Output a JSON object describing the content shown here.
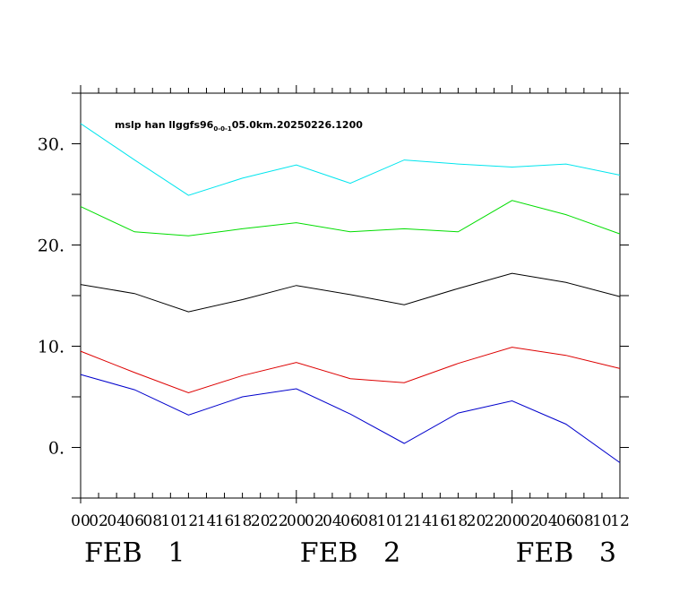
{
  "chart_data": {
    "type": "line",
    "title": {
      "prefix": "mslp han llggfs96",
      "subscript": "0-0-1",
      "suffix": "05.0km.20250226.1200"
    },
    "xlabel": "",
    "ylabel": "",
    "ylim": [
      -5,
      35
    ],
    "y_ticks": [
      0,
      10,
      20,
      30
    ],
    "y_tick_labels": [
      "0.",
      "10.",
      "20.",
      "30."
    ],
    "x_hours_range": [
      0,
      60
    ],
    "x_hour_tick_labels": [
      "00",
      "02",
      "04",
      "06",
      "08",
      "10",
      "12",
      "14",
      "16",
      "18",
      "20",
      "22",
      "00",
      "02",
      "04",
      "06",
      "08",
      "10",
      "12",
      "14",
      "16",
      "18",
      "20",
      "22",
      "00",
      "02",
      "04",
      "06",
      "08",
      "10",
      "12"
    ],
    "date_labels": [
      {
        "text": "FEB   1",
        "hour": 6
      },
      {
        "text": "FEB   2",
        "hour": 30
      },
      {
        "text": "FEB   3",
        "hour": 54
      }
    ],
    "x": [
      0,
      6,
      12,
      18,
      24,
      30,
      36,
      42,
      48,
      54,
      60
    ],
    "series": [
      {
        "color": "#00e5ee",
        "values": [
          32.0,
          28.4,
          24.9,
          26.6,
          27.9,
          26.1,
          28.4,
          28.0,
          27.7,
          28.0,
          26.9
        ]
      },
      {
        "color": "#00dd00",
        "values": [
          23.8,
          21.3,
          20.9,
          21.6,
          22.2,
          21.3,
          21.6,
          21.3,
          24.4,
          23.0,
          21.1
        ]
      },
      {
        "color": "#000000",
        "values": [
          16.1,
          15.2,
          13.4,
          14.6,
          16.0,
          15.1,
          14.1,
          15.7,
          17.2,
          16.3,
          14.9
        ]
      },
      {
        "color": "#dd0000",
        "values": [
          9.5,
          7.4,
          5.4,
          7.1,
          8.4,
          6.8,
          6.4,
          8.3,
          9.9,
          9.1,
          7.8
        ]
      },
      {
        "color": "#0000cc",
        "values": [
          7.2,
          5.7,
          3.2,
          5.0,
          5.8,
          3.3,
          0.4,
          3.4,
          4.6,
          2.3,
          -1.5
        ]
      }
    ],
    "grid": false,
    "legend": "none"
  }
}
